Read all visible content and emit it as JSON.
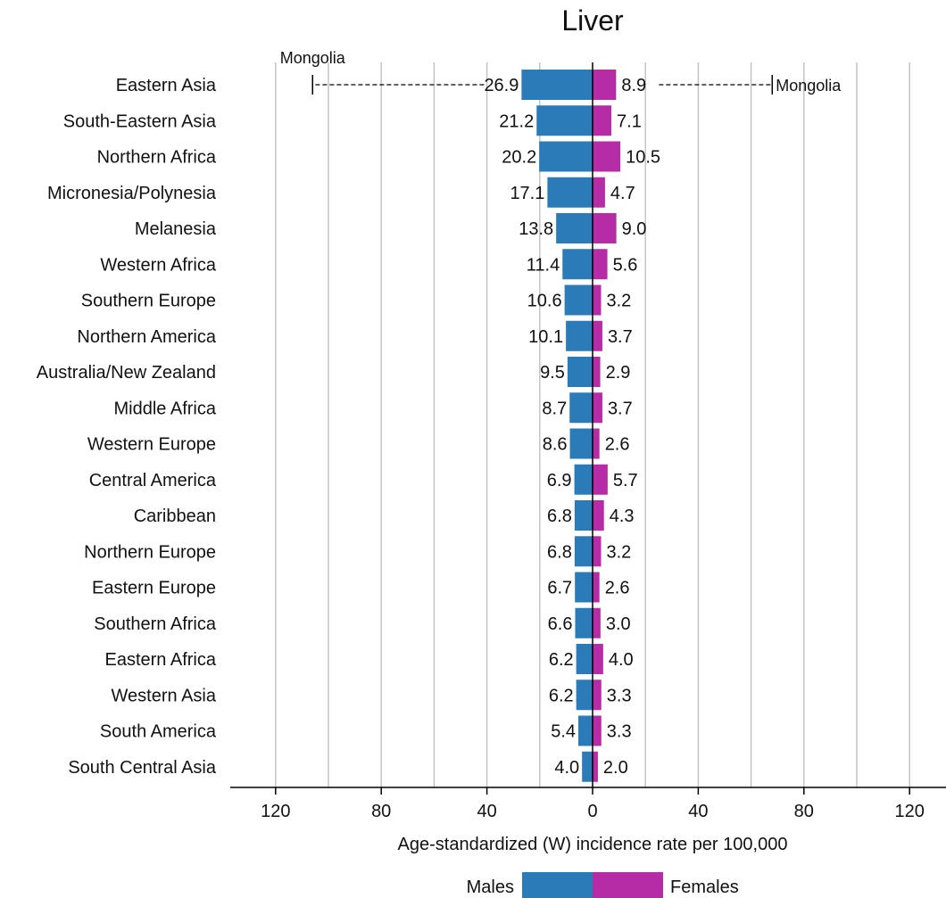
{
  "chart_data": {
    "type": "bar",
    "title": "Liver",
    "xlabel": "Age-standardized (W) incidence rate per 100,000",
    "ylabel": "",
    "xlim": [
      -140,
      140
    ],
    "x_ticks": [
      120,
      80,
      40,
      0,
      40,
      80,
      120
    ],
    "x_tick_values": [
      -120,
      -80,
      -40,
      0,
      40,
      80,
      120
    ],
    "gridlines_at": [
      -120,
      -100,
      -80,
      -60,
      -40,
      -20,
      20,
      40,
      60,
      80,
      100,
      120
    ],
    "grid": true,
    "legend_placement": "bottom",
    "categories": [
      "Eastern Asia",
      "South-Eastern Asia",
      "Northern Africa",
      "Micronesia/Polynesia",
      "Melanesia",
      "Western Africa",
      "Southern Europe",
      "Northern America",
      "Australia/New Zealand",
      "Middle Africa",
      "Western Europe",
      "Central America",
      "Caribbean",
      "Northern Europe",
      "Eastern Europe",
      "Southern Africa",
      "Eastern Africa",
      "Western Asia",
      "South America",
      "South Central Asia"
    ],
    "series": [
      {
        "name": "Males",
        "color": "#2b7bb9",
        "direction": "left",
        "values": [
          26.9,
          21.2,
          20.2,
          17.1,
          13.8,
          11.4,
          10.6,
          10.1,
          9.5,
          8.7,
          8.6,
          6.9,
          6.8,
          6.8,
          6.7,
          6.6,
          6.2,
          6.2,
          5.4,
          4.0
        ],
        "labels": [
          "26.9",
          "21.2",
          "20.2",
          "17.1",
          "13.8",
          "11.4",
          "10.6",
          "10.1",
          "9.5",
          "8.7",
          "8.6",
          "6.9",
          "6.8",
          "6.8",
          "6.7",
          "6.6",
          "6.2",
          "6.2",
          "5.4",
          "4.0"
        ]
      },
      {
        "name": "Females",
        "color": "#b62ba6",
        "direction": "right",
        "values": [
          8.9,
          7.1,
          10.5,
          4.7,
          9.0,
          5.6,
          3.2,
          3.7,
          2.9,
          3.7,
          2.6,
          5.7,
          4.3,
          3.2,
          2.6,
          3.0,
          4.0,
          3.3,
          3.3,
          2.0
        ],
        "labels": [
          "8.9",
          "7.1",
          "10.5",
          "4.7",
          "9.0",
          "5.6",
          "3.2",
          "3.7",
          "2.9",
          "3.7",
          "2.6",
          "5.7",
          "4.3",
          "3.2",
          "2.6",
          "3.0",
          "4.0",
          "3.3",
          "3.3",
          "2.0"
        ]
      }
    ],
    "annotations": [
      {
        "category": "Eastern Asia",
        "series": "Males",
        "max_value": 106,
        "label": "Mongolia"
      },
      {
        "category": "Eastern Asia",
        "series": "Females",
        "max_value": 68,
        "label": "Mongolia"
      }
    ]
  }
}
